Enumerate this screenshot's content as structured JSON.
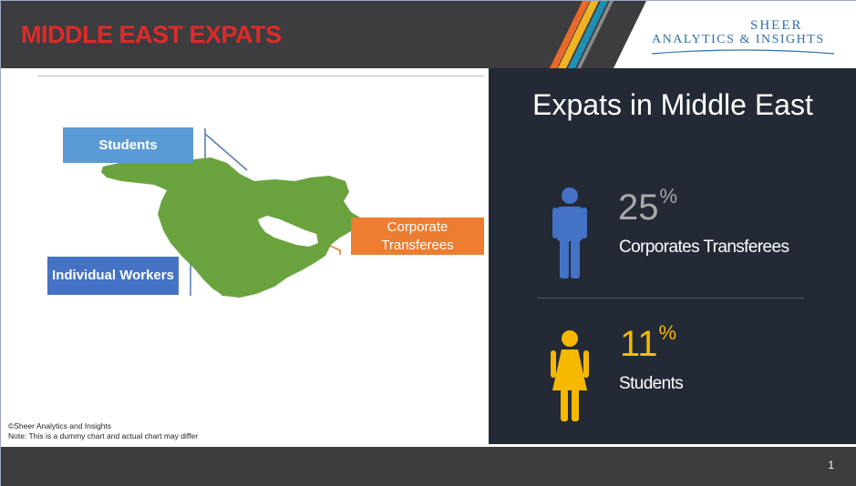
{
  "header": {
    "title": "MIDDLE EAST EXPATS",
    "logo_line1": "SHEER",
    "logo_line2": "ANALYTICS & INSIGHTS"
  },
  "map": {
    "labels": {
      "students": "Students",
      "individual_workers": "Individual Workers",
      "corporate_transferees": "Corporate Transferees"
    },
    "region_color": "#6aa33e"
  },
  "footnote": {
    "copyright": "©Sheer Analytics and Insights",
    "note": "Note: This is a dummy chart and actual chart may differ"
  },
  "stats_panel": {
    "title": "Expats in Middle East",
    "items": [
      {
        "value": "25",
        "unit": "%",
        "label": "Corporates Transferees",
        "icon": "male-person-icon",
        "color": "#4472c4"
      },
      {
        "value": "11",
        "unit": "%",
        "label": "Students",
        "icon": "female-person-icon",
        "color": "#f6b800"
      }
    ]
  },
  "footer": {
    "page_number": "1"
  },
  "colors": {
    "header_bg": "#3d3d3f",
    "title_red": "#e02a2a",
    "panel_bg": "#232a36",
    "students_box": "#5b9bd5",
    "workers_box": "#4472c4",
    "corporate_box": "#ed7d31"
  }
}
